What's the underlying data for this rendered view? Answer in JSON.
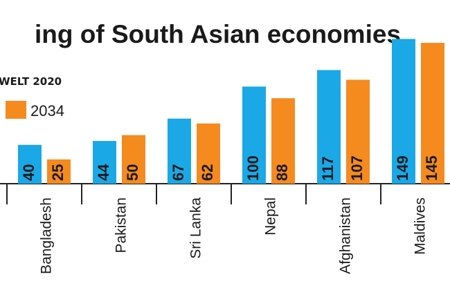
{
  "chart_data": {
    "type": "bar",
    "title": "ing of South Asian economies",
    "legend_source": "WELT 2020",
    "categories": [
      "Bangladesh",
      "Pakistan",
      "Sri Lanka",
      "Nepal",
      "Afghanistan",
      "Maldives"
    ],
    "series": [
      {
        "name": "",
        "values": [
          40,
          44,
          67,
          100,
          117,
          149
        ],
        "color": "#1aa8e6"
      },
      {
        "name": "2034",
        "values": [
          25,
          50,
          62,
          88,
          107,
          145
        ],
        "color": "#f58a1f"
      }
    ],
    "ylim": [
      0,
      155
    ],
    "grid": false,
    "legend_position": "top-left",
    "axis_color": "#222222"
  }
}
